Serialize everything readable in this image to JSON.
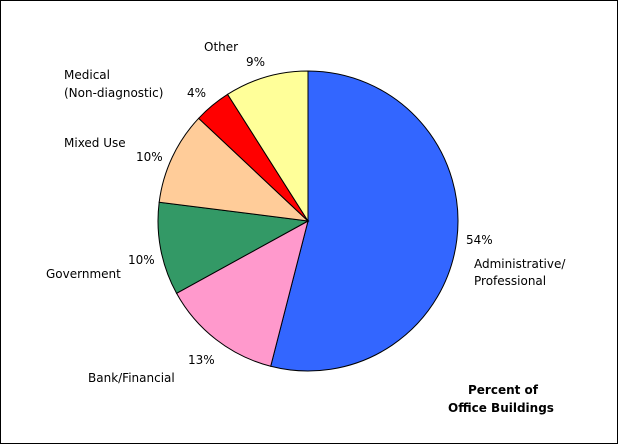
{
  "chart_data": {
    "type": "pie",
    "title": "",
    "annotation": [
      "Percent of",
      "Office Buildings"
    ],
    "slices": [
      {
        "label": [
          "Administrative/",
          "Professional"
        ],
        "value": 54,
        "value_label": "54%",
        "color": "#3366ff"
      },
      {
        "label": [
          "Bank/Financial"
        ],
        "value": 13,
        "value_label": "13%",
        "color": "#ff99cc"
      },
      {
        "label": [
          "Government"
        ],
        "value": 10,
        "value_label": "10%",
        "color": "#339966"
      },
      {
        "label": [
          "Mixed Use"
        ],
        "value": 10,
        "value_label": "10%",
        "color": "#ffcc99"
      },
      {
        "label": [
          "Medical",
          "(Non-diagnostic)"
        ],
        "value": 4,
        "value_label": "4%",
        "color": "#ff0000"
      },
      {
        "label": [
          "Other"
        ],
        "value": 9,
        "value_label": "9%",
        "color": "#ffff99"
      }
    ]
  }
}
